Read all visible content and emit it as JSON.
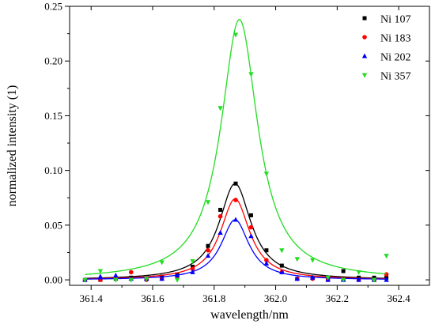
{
  "chart_data": {
    "type": "scatter",
    "xlabel": "wavelength/nm",
    "ylabel": "normalized intensity (1)",
    "xlim": [
      361.33,
      362.5
    ],
    "ylim": [
      -0.005,
      0.25
    ],
    "xticks": [
      361.4,
      361.6,
      361.8,
      362.0,
      362.2,
      362.4
    ],
    "xtick_labels": [
      "361.4",
      "361.6",
      "361.8",
      "362.0",
      "362.2",
      "362.4"
    ],
    "yticks": [
      0.0,
      0.05,
      0.1,
      0.15,
      0.2,
      0.25
    ],
    "ytick_labels": [
      "0.00",
      "0.05",
      "0.10",
      "0.15",
      "0.20",
      "0.25"
    ],
    "grid": false,
    "legend_position": "top-right",
    "series": [
      {
        "name": "Ni 107",
        "color": "#000000",
        "marker": "square",
        "fit": {
          "center": 361.868,
          "hwhm": 0.063,
          "peak": 0.088
        },
        "points": [
          [
            361.38,
            0.0
          ],
          [
            361.43,
            0.0
          ],
          [
            361.48,
            0.001
          ],
          [
            361.53,
            0.002
          ],
          [
            361.58,
            0.001
          ],
          [
            361.63,
            0.003
          ],
          [
            361.68,
            0.005
          ],
          [
            361.73,
            0.012
          ],
          [
            361.78,
            0.031
          ],
          [
            361.82,
            0.064
          ],
          [
            361.87,
            0.088
          ],
          [
            361.92,
            0.059
          ],
          [
            361.97,
            0.027
          ],
          [
            362.02,
            0.013
          ],
          [
            362.07,
            0.001
          ],
          [
            362.12,
            0.002
          ],
          [
            362.17,
            0.002
          ],
          [
            362.22,
            0.008
          ],
          [
            362.27,
            0.002
          ],
          [
            362.32,
            0.002
          ],
          [
            362.36,
            0.002
          ]
        ]
      },
      {
        "name": "Ni 183",
        "color": "#ff0000",
        "marker": "circle",
        "fit": {
          "center": 361.868,
          "hwhm": 0.058,
          "peak": 0.074
        },
        "points": [
          [
            361.38,
            0.0
          ],
          [
            361.43,
            0.0
          ],
          [
            361.48,
            0.002
          ],
          [
            361.53,
            0.007
          ],
          [
            361.58,
            0.0
          ],
          [
            361.63,
            0.001
          ],
          [
            361.68,
            0.003
          ],
          [
            361.73,
            0.01
          ],
          [
            361.78,
            0.027
          ],
          [
            361.82,
            0.058
          ],
          [
            361.87,
            0.073
          ],
          [
            361.92,
            0.048
          ],
          [
            361.97,
            0.018
          ],
          [
            362.02,
            0.007
          ],
          [
            362.07,
            0.001
          ],
          [
            362.12,
            0.001
          ],
          [
            362.17,
            0.0
          ],
          [
            362.22,
            0.0
          ],
          [
            362.27,
            0.0
          ],
          [
            362.32,
            0.0
          ],
          [
            362.36,
            0.005
          ]
        ]
      },
      {
        "name": "Ni 202",
        "color": "#0000ff",
        "marker": "triangle-up",
        "fit": {
          "center": 361.868,
          "hwhm": 0.055,
          "peak": 0.055
        },
        "points": [
          [
            361.38,
            0.0
          ],
          [
            361.43,
            0.003
          ],
          [
            361.48,
            0.004
          ],
          [
            361.53,
            0.001
          ],
          [
            361.58,
            0.001
          ],
          [
            361.63,
            0.001
          ],
          [
            361.68,
            0.004
          ],
          [
            361.73,
            0.007
          ],
          [
            361.78,
            0.022
          ],
          [
            361.82,
            0.043
          ],
          [
            361.87,
            0.055
          ],
          [
            361.92,
            0.04
          ],
          [
            361.97,
            0.015
          ],
          [
            362.02,
            0.007
          ],
          [
            362.07,
            0.001
          ],
          [
            362.12,
            0.002
          ],
          [
            362.17,
            0.0
          ],
          [
            362.22,
            0.0
          ],
          [
            362.27,
            0.0
          ],
          [
            362.32,
            0.0
          ],
          [
            362.36,
            0.0
          ]
        ]
      },
      {
        "name": "Ni 357",
        "color": "#22dd22",
        "marker": "triangle-down",
        "fit": {
          "center": 361.882,
          "hwhm": 0.073,
          "peak": 0.238
        },
        "points": [
          [
            361.38,
            0.0
          ],
          [
            361.43,
            0.008
          ],
          [
            361.48,
            0.0
          ],
          [
            361.53,
            0.0
          ],
          [
            361.58,
            0.001
          ],
          [
            361.63,
            0.016
          ],
          [
            361.68,
            0.0
          ],
          [
            361.73,
            0.017
          ],
          [
            361.78,
            0.071
          ],
          [
            361.82,
            0.157
          ],
          [
            361.87,
            0.224
          ],
          [
            361.92,
            0.188
          ],
          [
            361.97,
            0.097
          ],
          [
            362.02,
            0.027
          ],
          [
            362.07,
            0.019
          ],
          [
            362.12,
            0.018
          ],
          [
            362.17,
            0.002
          ],
          [
            362.22,
            0.0
          ],
          [
            362.27,
            0.007
          ],
          [
            362.32,
            0.0
          ],
          [
            362.36,
            0.022
          ]
        ]
      }
    ]
  }
}
